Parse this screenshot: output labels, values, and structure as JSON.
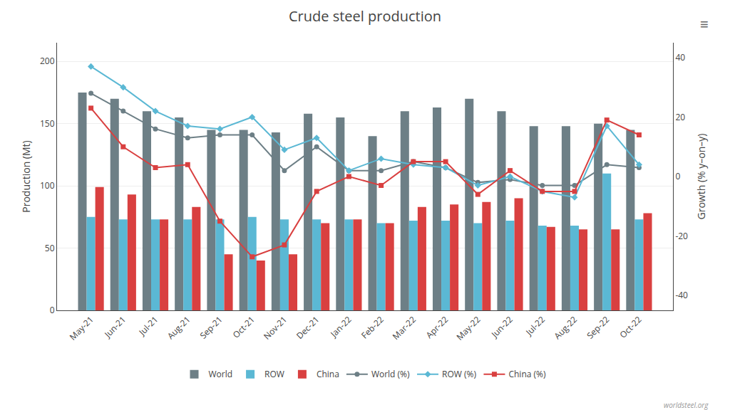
{
  "chart_data": {
    "type": "bar",
    "title": "Crude steel production",
    "ylabel": "Production (Mt)",
    "y2label": "Growth (% y–on–y)",
    "categories": [
      "May-21",
      "Jun-21",
      "Jul-21",
      "Aug-21",
      "Sep-21",
      "Oct-21",
      "Nov-21",
      "Dec-21",
      "Jan-22",
      "Feb-22",
      "Mar-22",
      "Apr-22",
      "May-22",
      "Jun-22",
      "Jul-22",
      "Aug-22",
      "Sep-22",
      "Oct-22"
    ],
    "series": [
      {
        "name": "World",
        "type": "bar",
        "color": "#6d7f86",
        "values": [
          175,
          170,
          160,
          155,
          145,
          145,
          143,
          158,
          155,
          140,
          160,
          163,
          170,
          160,
          148,
          148,
          150,
          145
        ]
      },
      {
        "name": "ROW",
        "type": "bar",
        "color": "#5bb8d4",
        "values": [
          75,
          73,
          73,
          73,
          73,
          75,
          73,
          73,
          73,
          70,
          72,
          72,
          70,
          72,
          68,
          68,
          110,
          73
        ]
      },
      {
        "name": "China",
        "type": "bar",
        "color": "#d94040",
        "values": [
          99,
          93,
          73,
          83,
          45,
          40,
          45,
          70,
          73,
          70,
          83,
          85,
          87,
          90,
          67,
          65,
          65,
          78
        ]
      },
      {
        "name": "World (%)",
        "type": "line",
        "axis": "y2",
        "color": "#6d7f86",
        "marker": "circle",
        "values": [
          28,
          22,
          16,
          13,
          14,
          14,
          2,
          10,
          2,
          2,
          5,
          3,
          -2,
          -1,
          -3,
          -3,
          4,
          3
        ]
      },
      {
        "name": "ROW (%)",
        "type": "line",
        "axis": "y2",
        "color": "#5bb8d4",
        "marker": "diamond",
        "values": [
          37,
          30,
          22,
          17,
          16,
          20,
          9,
          13,
          2,
          6,
          4,
          3,
          -3,
          0,
          -5,
          -7,
          17,
          4
        ]
      },
      {
        "name": "China (%)",
        "type": "line",
        "axis": "y2",
        "color": "#d94040",
        "marker": "square",
        "values": [
          23,
          10,
          3,
          4,
          -15,
          -27,
          -23,
          -5,
          0,
          -3,
          5,
          5,
          -6,
          2,
          -5,
          -5,
          19,
          14
        ]
      }
    ],
    "ylim": [
      0,
      215
    ],
    "yticks": [
      0,
      50,
      100,
      150,
      200
    ],
    "y2lim": [
      -45,
      45
    ],
    "y2ticks": [
      -40,
      -20,
      0,
      20,
      40
    ],
    "grid": true,
    "legend": "bottom",
    "annotations": [
      "worldsteel.org",
      "≡"
    ]
  }
}
